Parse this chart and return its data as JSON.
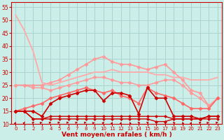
{
  "xlabel": "Vent moyen/en rafales ( km/h )",
  "background_color": "#cceee8",
  "grid_color": "#aad4ce",
  "axis_color": "#cc0000",
  "text_color": "#cc0000",
  "xlim": [
    -0.5,
    23.5
  ],
  "ylim": [
    10,
    57
  ],
  "yticks": [
    10,
    15,
    20,
    25,
    30,
    35,
    40,
    45,
    50,
    55
  ],
  "xticks": [
    0,
    1,
    2,
    3,
    4,
    5,
    6,
    7,
    8,
    9,
    10,
    11,
    12,
    13,
    14,
    15,
    16,
    17,
    18,
    19,
    20,
    21,
    22,
    23
  ],
  "lines": [
    {
      "x": [
        0,
        1,
        2,
        3,
        4,
        5,
        6,
        7,
        8,
        9,
        10,
        11,
        12,
        13,
        14,
        15,
        16,
        17,
        18,
        19,
        20,
        21,
        22,
        23
      ],
      "y": [
        52,
        46,
        38,
        26,
        25,
        26,
        27,
        28,
        29,
        30,
        30,
        31,
        30,
        30,
        30,
        30,
        29,
        29,
        28,
        28,
        27,
        27,
        27,
        28
      ],
      "color": "#ffaaaa",
      "lw": 1.3,
      "marker": null,
      "zorder": 2
    },
    {
      "x": [
        0,
        1,
        2,
        3,
        4,
        5,
        6,
        7,
        8,
        9,
        10,
        11,
        12,
        13,
        14,
        15,
        16,
        17,
        18,
        19,
        20,
        21,
        22,
        23
      ],
      "y": [
        25,
        25,
        25,
        25,
        26,
        27,
        29,
        31,
        33,
        35,
        36,
        34,
        33,
        33,
        32,
        31,
        32,
        33,
        30,
        27,
        23,
        22,
        17,
        20
      ],
      "color": "#ff9999",
      "lw": 1.2,
      "marker": "D",
      "ms": 2.5,
      "zorder": 3
    },
    {
      "x": [
        0,
        1,
        2,
        3,
        4,
        5,
        6,
        7,
        8,
        9,
        10,
        11,
        12,
        13,
        14,
        15,
        16,
        17,
        18,
        19,
        20,
        21,
        22,
        23
      ],
      "y": [
        25,
        25,
        24,
        24,
        23,
        24,
        25,
        26,
        27,
        28,
        28,
        27,
        26,
        26,
        25,
        25,
        26,
        27,
        27,
        25,
        22,
        20,
        17,
        20
      ],
      "color": "#ff9999",
      "lw": 1.1,
      "marker": "D",
      "ms": 2.5,
      "zorder": 3
    },
    {
      "x": [
        0,
        1,
        2,
        3,
        4,
        5,
        6,
        7,
        8,
        9,
        10,
        11,
        12,
        13,
        14,
        15,
        16,
        17,
        18,
        19,
        20,
        21,
        22,
        23
      ],
      "y": [
        15,
        16,
        17,
        18,
        20,
        21,
        22,
        23,
        24,
        23,
        22,
        23,
        21,
        20,
        18,
        24,
        22,
        21,
        20,
        18,
        16,
        16,
        16,
        20
      ],
      "color": "#ff6666",
      "lw": 1.2,
      "marker": "D",
      "ms": 2.5,
      "zorder": 4
    },
    {
      "x": [
        0,
        1,
        2,
        3,
        4,
        5,
        6,
        7,
        8,
        9,
        10,
        11,
        12,
        13,
        14,
        15,
        16,
        17,
        18,
        19,
        20,
        21,
        22,
        23
      ],
      "y": [
        15,
        15,
        15,
        13,
        18,
        20,
        21,
        22,
        23,
        23,
        19,
        22,
        22,
        21,
        14,
        24,
        20,
        20,
        13,
        13,
        13,
        12,
        13,
        13
      ],
      "color": "#cc0000",
      "lw": 1.2,
      "marker": "D",
      "ms": 2.5,
      "zorder": 5
    },
    {
      "x": [
        0,
        1,
        2,
        3,
        4,
        5,
        6,
        7,
        8,
        9,
        10,
        11,
        12,
        13,
        14,
        15,
        16,
        17,
        18,
        19,
        20,
        21,
        22,
        23
      ],
      "y": [
        15,
        15,
        12,
        12,
        13,
        13,
        13,
        13,
        13,
        13,
        13,
        13,
        13,
        13,
        13,
        13,
        13,
        13,
        12,
        12,
        12,
        12,
        13,
        13
      ],
      "color": "#cc0000",
      "lw": 1.0,
      "marker": "D",
      "ms": 2.0,
      "zorder": 4
    },
    {
      "x": [
        0,
        1,
        2,
        3,
        4,
        5,
        6,
        7,
        8,
        9,
        10,
        11,
        12,
        13,
        14,
        15,
        16,
        17,
        18,
        19,
        20,
        21,
        22,
        23
      ],
      "y": [
        15,
        15,
        12,
        12,
        12,
        12,
        12,
        12,
        12,
        12,
        12,
        12,
        12,
        12,
        12,
        12,
        11,
        11,
        12,
        12,
        12,
        12,
        12,
        12
      ],
      "color": "#cc0000",
      "lw": 1.0,
      "marker": "D",
      "ms": 2.0,
      "zorder": 4
    }
  ],
  "wind_arrows": {
    "angles": [
      10,
      15,
      30,
      60,
      80,
      85,
      90,
      85,
      80,
      50,
      20,
      10,
      5,
      350,
      340,
      335,
      330,
      340,
      340,
      350,
      10,
      30,
      60,
      80
    ],
    "color": "#cc0000"
  }
}
